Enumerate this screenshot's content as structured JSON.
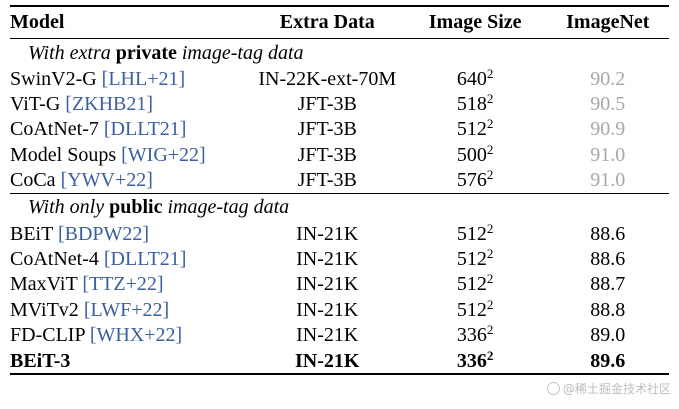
{
  "header": {
    "model": "Model",
    "extra_data": "Extra Data",
    "image_size": "Image Size",
    "imagenet": "ImageNet"
  },
  "sections": [
    {
      "label_prefix": "With extra ",
      "label_bold": "private",
      "label_suffix": " image-tag data",
      "rows": [
        {
          "model": "SwinV2-G ",
          "cite": "[LHL+21]",
          "extra": "IN-22K-ext-70M",
          "size": "640",
          "exp": "2",
          "imagenet": "90.2"
        },
        {
          "model": "ViT-G ",
          "cite": "[ZKHB21]",
          "extra": "JFT-3B",
          "size": "518",
          "exp": "2",
          "imagenet": "90.5"
        },
        {
          "model": "CoAtNet-7 ",
          "cite": "[DLLT21]",
          "extra": "JFT-3B",
          "size": "512",
          "exp": "2",
          "imagenet": "90.9"
        },
        {
          "model": "Model Soups ",
          "cite": "[WIG+22]",
          "extra": "JFT-3B",
          "size": "500",
          "exp": "2",
          "imagenet": "91.0"
        },
        {
          "model": "CoCa ",
          "cite": "[YWV+22]",
          "extra": "JFT-3B",
          "size": "576",
          "exp": "2",
          "imagenet": "91.0"
        }
      ]
    },
    {
      "label_prefix": "With only ",
      "label_bold": "public",
      "label_suffix": " image-tag data",
      "rows": [
        {
          "model": "BEiT ",
          "cite": "[BDPW22]",
          "extra": "IN-21K",
          "size": "512",
          "exp": "2",
          "imagenet": "88.6"
        },
        {
          "model": "CoAtNet-4 ",
          "cite": "[DLLT21]",
          "extra": "IN-21K",
          "size": "512",
          "exp": "2",
          "imagenet": "88.6"
        },
        {
          "model": "MaxViT ",
          "cite": "[TTZ+22]",
          "extra": "IN-21K",
          "size": "512",
          "exp": "2",
          "imagenet": "88.7"
        },
        {
          "model": "MViTv2 ",
          "cite": "[LWF+22]",
          "extra": "IN-21K",
          "size": "512",
          "exp": "2",
          "imagenet": "88.8"
        },
        {
          "model": "FD-CLIP ",
          "cite": "[WHX+22]",
          "extra": "IN-21K",
          "size": "336",
          "exp": "2",
          "imagenet": "89.0"
        },
        {
          "model": "BEiT-3",
          "cite": "",
          "extra": "IN-21K",
          "size": "336",
          "exp": "2",
          "imagenet": "89.6"
        }
      ]
    }
  ],
  "watermark": "@稀土掘金技术社区",
  "colors": {
    "gray_value": "#a8a8a8",
    "citation": "#3c5fa0"
  }
}
